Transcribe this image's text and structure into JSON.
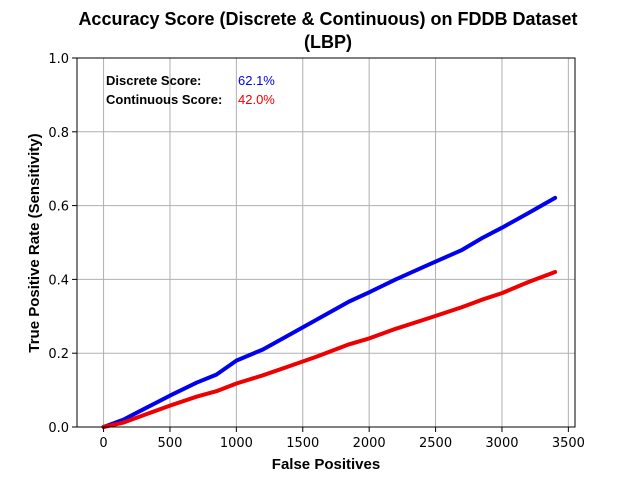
{
  "chart_data": {
    "type": "line",
    "title_line1": "Accuracy Score (Discrete & Continuous) on FDDB Dataset",
    "title_line2": "(LBP)",
    "xlabel": "False Positives",
    "ylabel": "True Positive Rate (Sensitivity)",
    "xlim": [
      -200,
      3550
    ],
    "ylim": [
      0.0,
      1.0
    ],
    "x_ticks": [
      0,
      500,
      1000,
      1500,
      2000,
      2500,
      3000,
      3500
    ],
    "y_ticks": [
      0.0,
      0.2,
      0.4,
      0.6,
      0.8,
      1.0
    ],
    "x_tick_labels": [
      "0",
      "500",
      "1000",
      "1500",
      "2000",
      "2500",
      "3000",
      "3500"
    ],
    "y_tick_labels": [
      "0.0",
      "0.2",
      "0.4",
      "0.6",
      "0.8",
      "1.0"
    ],
    "grid": true,
    "series": [
      {
        "name": "Discrete Score",
        "color": "#0000ee",
        "x": [
          0,
          150,
          300,
          500,
          700,
          850,
          1000,
          1200,
          1400,
          1600,
          1850,
          2000,
          2200,
          2450,
          2700,
          2850,
          3000,
          3200,
          3400
        ],
        "y": [
          0.0,
          0.02,
          0.048,
          0.085,
          0.12,
          0.142,
          0.18,
          0.21,
          0.25,
          0.29,
          0.34,
          0.365,
          0.4,
          0.44,
          0.48,
          0.512,
          0.54,
          0.58,
          0.621
        ]
      },
      {
        "name": "Continuous Score",
        "color": "#ee0000",
        "x": [
          0,
          150,
          300,
          500,
          700,
          850,
          1000,
          1200,
          1400,
          1600,
          1850,
          2000,
          2200,
          2450,
          2700,
          2850,
          3000,
          3200,
          3400
        ],
        "y": [
          0.0,
          0.012,
          0.032,
          0.058,
          0.082,
          0.097,
          0.118,
          0.14,
          0.165,
          0.19,
          0.224,
          0.24,
          0.266,
          0.295,
          0.325,
          0.345,
          0.363,
          0.393,
          0.42
        ]
      }
    ],
    "annotations": [
      {
        "label": "Discrete Score:",
        "value": "62.1%",
        "color": "#0000ee"
      },
      {
        "label": "Continuous Score:",
        "value": "42.0%",
        "color": "#ee0000"
      }
    ]
  }
}
